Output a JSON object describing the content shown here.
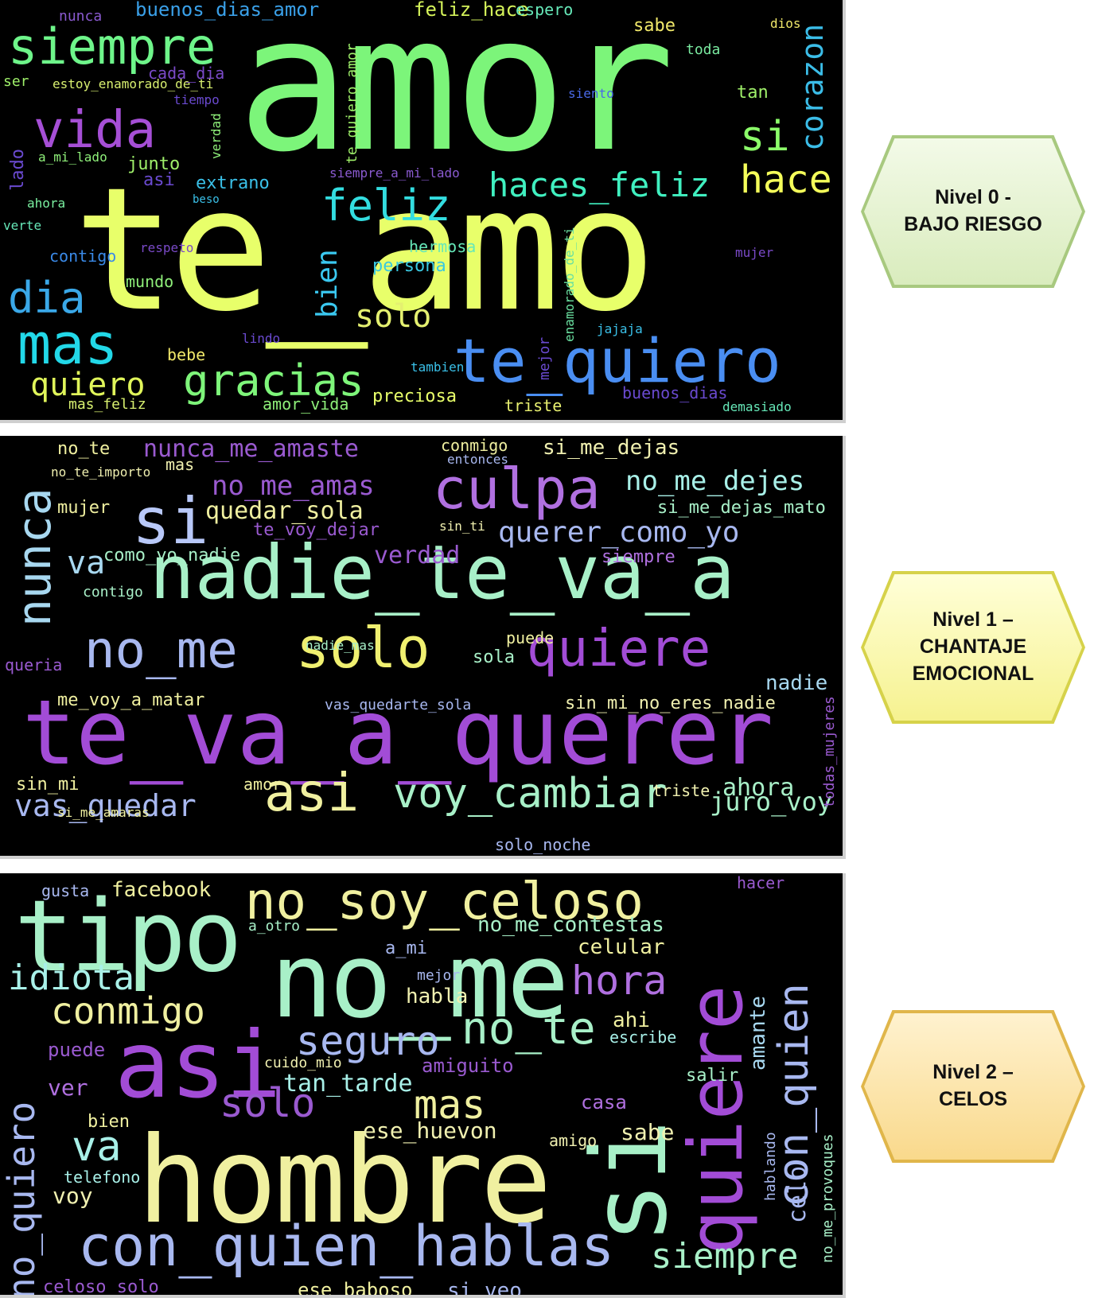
{
  "levels": [
    {
      "line1": "Nivel 0 -",
      "line2": "BAJO RIESGO",
      "line3": "",
      "words": [
        {
          "t": "amor",
          "c": "#7cf57a"
        },
        {
          "t": "te_amo",
          "c": "#e8ff6a"
        },
        {
          "t": "siempre",
          "c": "#6ef58a"
        },
        {
          "t": "vida",
          "c": "#a64fd6"
        },
        {
          "t": "feliz",
          "c": "#33dde0"
        },
        {
          "t": "haces_feliz",
          "c": "#40f0c0"
        },
        {
          "t": "hace",
          "c": "#f5ff5a"
        },
        {
          "t": "si",
          "c": "#8cff6a"
        },
        {
          "t": "corazon",
          "c": "#3bbde8"
        },
        {
          "t": "te_quiero",
          "c": "#4a8ef2"
        },
        {
          "t": "dia",
          "c": "#3aa8e8"
        },
        {
          "t": "mas",
          "c": "#22d8e8"
        },
        {
          "t": "quiero",
          "c": "#e0f55a"
        },
        {
          "t": "gracias",
          "c": "#7ef57a"
        },
        {
          "t": "solo",
          "c": "#e4f070"
        },
        {
          "t": "bien",
          "c": "#3ac8f0"
        },
        {
          "t": "buenos_dias_amor",
          "c": "#3aa0e8"
        },
        {
          "t": "feliz_hace",
          "c": "#d4f25a"
        },
        {
          "t": "espero",
          "c": "#66e8b8"
        },
        {
          "t": "sabe",
          "c": "#f0e86a"
        },
        {
          "t": "nunca",
          "c": "#8a5ad0"
        },
        {
          "t": "toda",
          "c": "#7aeaa0"
        },
        {
          "t": "ser",
          "c": "#9ff06a"
        },
        {
          "t": "estoy_enamorado_de_ti",
          "c": "#d8f070"
        },
        {
          "t": "cada_dia",
          "c": "#7a4ac8"
        },
        {
          "t": "tiempo",
          "c": "#6a4ad0"
        },
        {
          "t": "junto",
          "c": "#9ff06a"
        },
        {
          "t": "extrano",
          "c": "#3ac0e8"
        },
        {
          "t": "asi",
          "c": "#6a4ad0"
        },
        {
          "t": "siempre_a_mi_lado",
          "c": "#8a5ad0"
        },
        {
          "t": "a_mi_lado",
          "c": "#8ff07a"
        },
        {
          "t": "ahora",
          "c": "#7af0a0"
        },
        {
          "t": "contigo",
          "c": "#3a8ae8"
        },
        {
          "t": "mundo",
          "c": "#8ff07a"
        },
        {
          "t": "hermosa",
          "c": "#66e8b8"
        },
        {
          "t": "persona",
          "c": "#3ac8e0"
        },
        {
          "t": "respeto",
          "c": "#7a4ac8"
        },
        {
          "t": "bebe",
          "c": "#f0e86a"
        },
        {
          "t": "mas_feliz",
          "c": "#d8f070"
        },
        {
          "t": "amor_vida",
          "c": "#8ff07a"
        },
        {
          "t": "preciosa",
          "c": "#e8ff6a"
        },
        {
          "t": "tambien",
          "c": "#3ac0e8"
        },
        {
          "t": "triste",
          "c": "#e8f070"
        },
        {
          "t": "buenos_dias",
          "c": "#6a4ad0"
        },
        {
          "t": "demasiado",
          "c": "#66e8b8"
        },
        {
          "t": "mujer",
          "c": "#7a4ac8"
        },
        {
          "t": "tan",
          "c": "#9ff06a"
        },
        {
          "t": "siento",
          "c": "#4a6ae8"
        },
        {
          "t": "jajaja",
          "c": "#3ac0e8"
        },
        {
          "t": "lindo",
          "c": "#6a4ad0"
        },
        {
          "t": "mejor",
          "c": "#6a4ad0"
        },
        {
          "t": "verte",
          "c": "#66e8b8"
        },
        {
          "t": "lado",
          "c": "#6a4ad0"
        },
        {
          "t": "te_quiero_amor",
          "c": "#9ff06a"
        },
        {
          "t": "beso",
          "c": "#3ac0e8"
        },
        {
          "t": "verdad",
          "c": "#8ff07a"
        },
        {
          "t": "dios",
          "c": "#f0e86a"
        },
        {
          "t": "enamorado_de_ti",
          "c": "#6ae0a0"
        }
      ]
    },
    {
      "line1": "Nivel 1 –",
      "line2": "CHANTAJE",
      "line3": "EMOCIONAL",
      "words": [
        {
          "t": "te_va_a_querer",
          "c": "#a24cd6"
        },
        {
          "t": "nadie_te_va_a",
          "c": "#a8f0c8"
        },
        {
          "t": "solo",
          "c": "#f0f070"
        },
        {
          "t": "quiere",
          "c": "#a24cd6"
        },
        {
          "t": "no_me",
          "c": "#a8b8f0"
        },
        {
          "t": "culpa",
          "c": "#b070e0"
        },
        {
          "t": "si",
          "c": "#b8c8f8"
        },
        {
          "t": "nunca",
          "c": "#a8d8f0"
        },
        {
          "t": "asi",
          "c": "#f0f0a0"
        },
        {
          "t": "voy_cambiar",
          "c": "#a8f0c8"
        },
        {
          "t": "vas_quedar",
          "c": "#a8b8f0"
        },
        {
          "t": "juro_voy",
          "c": "#a8f0c8"
        },
        {
          "t": "no_me_amas",
          "c": "#9a5ad0"
        },
        {
          "t": "nunca_me_amaste",
          "c": "#9a5ad0"
        },
        {
          "t": "no_me_dejes",
          "c": "#a8f0e8"
        },
        {
          "t": "quedar_sola",
          "c": "#f0f0a0"
        },
        {
          "t": "querer_como_yo",
          "c": "#a8b8f0"
        },
        {
          "t": "si_me_dejas",
          "c": "#f0f0b0"
        },
        {
          "t": "si_me_dejas_mato",
          "c": "#a8f0c8"
        },
        {
          "t": "te_voy_dejar",
          "c": "#9a5ad0"
        },
        {
          "t": "verdad",
          "c": "#9a5ad0"
        },
        {
          "t": "siempre",
          "c": "#b070e0"
        },
        {
          "t": "va",
          "c": "#a8d8f0"
        },
        {
          "t": "como_yo_nadie",
          "c": "#a8f0c8"
        },
        {
          "t": "mujer",
          "c": "#f0f0a0"
        },
        {
          "t": "no_te",
          "c": "#f0f0a0"
        },
        {
          "t": "no_te_importo",
          "c": "#f0f0b0"
        },
        {
          "t": "mas",
          "c": "#f0f0b0"
        },
        {
          "t": "conmigo",
          "c": "#f0f0a0"
        },
        {
          "t": "entonces",
          "c": "#a8b8f0"
        },
        {
          "t": "sin_ti",
          "c": "#f0f0b0"
        },
        {
          "t": "sola",
          "c": "#a8f0c8"
        },
        {
          "t": "puede",
          "c": "#f0f0a0"
        },
        {
          "t": "nadie",
          "c": "#a8d8f0"
        },
        {
          "t": "sin_mi_no_eres_nadie",
          "c": "#f0f0b0"
        },
        {
          "t": "me_voy_a_matar",
          "c": "#f0f0a0"
        },
        {
          "t": "vas_quedarte_sola",
          "c": "#a8b8f0"
        },
        {
          "t": "ahora",
          "c": "#a8f0c8"
        },
        {
          "t": "triste",
          "c": "#f0f0b0"
        },
        {
          "t": "sin_mi",
          "c": "#f0f0a0"
        },
        {
          "t": "amor",
          "c": "#f0f0a0"
        },
        {
          "t": "queria",
          "c": "#9a5ad0"
        },
        {
          "t": "contigo",
          "c": "#a8f0c8"
        },
        {
          "t": "solo_noche",
          "c": "#a8b8f0"
        },
        {
          "t": "si_me_amaras",
          "c": "#f0f0a0"
        },
        {
          "t": "nadie_mas",
          "c": "#a8f0c8"
        },
        {
          "t": "todas_mujeres",
          "c": "#9a5ad0"
        }
      ]
    },
    {
      "line1": "Nivel 2 –",
      "line2": "CELOS",
      "line3": "",
      "words": [
        {
          "t": "hombre",
          "c": "#f0f0a0"
        },
        {
          "t": "no_me",
          "c": "#a8f0c8"
        },
        {
          "t": "tipo",
          "c": "#a8f0c8"
        },
        {
          "t": "asi",
          "c": "#a24cd6"
        },
        {
          "t": "no_soy_celoso",
          "c": "#f0f0a0"
        },
        {
          "t": "quiere",
          "c": "#a24cd6"
        },
        {
          "t": "si",
          "c": "#a8f0c8"
        },
        {
          "t": "con_quien",
          "c": "#a8b8f0"
        },
        {
          "t": "con_quien_hablas",
          "c": "#a8b8f0"
        },
        {
          "t": "siempre",
          "c": "#a8f0c8"
        },
        {
          "t": "idiota",
          "c": "#a8f0e8"
        },
        {
          "t": "conmigo",
          "c": "#f0f0a0"
        },
        {
          "t": "facebook",
          "c": "#f0f0a0"
        },
        {
          "t": "gusta",
          "c": "#a8b8f0"
        },
        {
          "t": "seguro",
          "c": "#a8b8f0"
        },
        {
          "t": "no_te",
          "c": "#a8f0c8"
        },
        {
          "t": "hora",
          "c": "#b070e0"
        },
        {
          "t": "solo",
          "c": "#9a5ad0"
        },
        {
          "t": "mas",
          "c": "#f0f0a0"
        },
        {
          "t": "va",
          "c": "#a8f0e8"
        },
        {
          "t": "no_quiero",
          "c": "#a8b8f0"
        },
        {
          "t": "tan_tarde",
          "c": "#a8f0e8"
        },
        {
          "t": "ese_huevon",
          "c": "#f0f0b0"
        },
        {
          "t": "no_me_contestas",
          "c": "#a8f0c8"
        },
        {
          "t": "celular",
          "c": "#f0f0a0"
        },
        {
          "t": "habla",
          "c": "#f0f0b0"
        },
        {
          "t": "amiguito",
          "c": "#9a5ad0"
        },
        {
          "t": "casa",
          "c": "#b070e0"
        },
        {
          "t": "sabe",
          "c": "#f0f0b0"
        },
        {
          "t": "ahi",
          "c": "#f0f0a0"
        },
        {
          "t": "a_mi",
          "c": "#a8b8f0"
        },
        {
          "t": "mejor",
          "c": "#a8b8f0"
        },
        {
          "t": "puede",
          "c": "#9a5ad0"
        },
        {
          "t": "ver",
          "c": "#b070e0"
        },
        {
          "t": "bien",
          "c": "#f0f0a0"
        },
        {
          "t": "voy",
          "c": "#f0f0b0"
        },
        {
          "t": "celo",
          "c": "#a8b8f0"
        },
        {
          "t": "amante",
          "c": "#a8d8f0"
        },
        {
          "t": "cuido_mio",
          "c": "#f0f0b0"
        },
        {
          "t": "salir",
          "c": "#a8f0c8"
        },
        {
          "t": "escribe",
          "c": "#a8f0e8"
        },
        {
          "t": "amigo",
          "c": "#f0f0b0"
        },
        {
          "t": "telefono",
          "c": "#a8f0e8"
        },
        {
          "t": "ese_baboso",
          "c": "#f0f0a0"
        },
        {
          "t": "si_veo",
          "c": "#a8b8f0"
        },
        {
          "t": "celoso_solo",
          "c": "#9a5ad0"
        },
        {
          "t": "hacer",
          "c": "#9a5ad0"
        },
        {
          "t": "a_otro",
          "c": "#a8f0c8"
        },
        {
          "t": "no_me_provoques",
          "c": "#a8f0c8"
        },
        {
          "t": "hablando",
          "c": "#a8b8f0"
        }
      ]
    }
  ]
}
